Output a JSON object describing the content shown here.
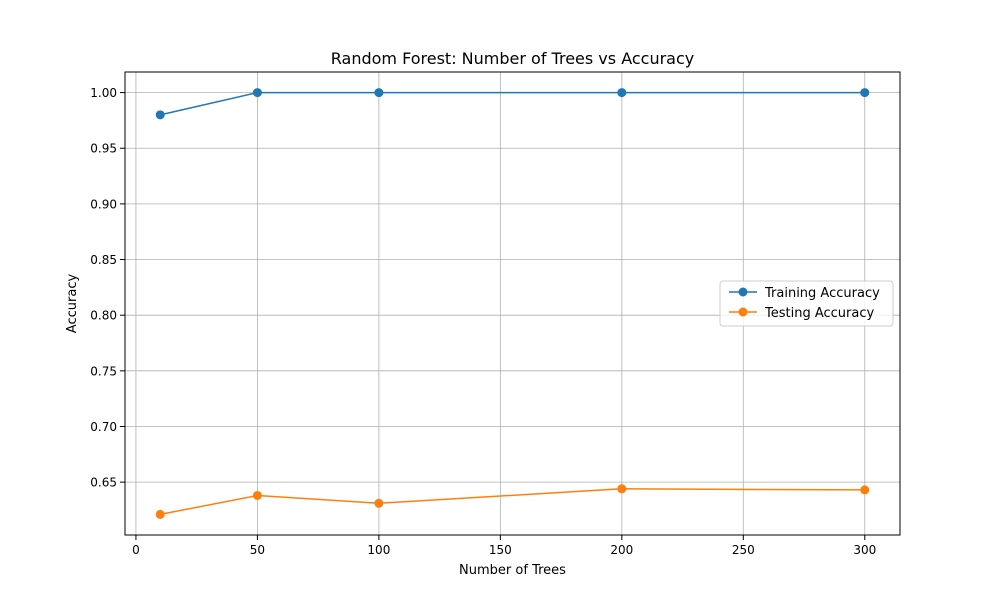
{
  "chart_data": {
    "type": "line",
    "title": "Random Forest: Number of Trees vs Accuracy",
    "xlabel": "Number of Trees",
    "ylabel": "Accuracy",
    "x": [
      10,
      50,
      100,
      200,
      300
    ],
    "xlim": [
      -4.5,
      314.5
    ],
    "ylim": [
      0.6025,
      1.0185
    ],
    "xticks": [
      0,
      50,
      100,
      150,
      200,
      250,
      300
    ],
    "xtick_labels": [
      "0",
      "50",
      "100",
      "150",
      "200",
      "250",
      "300"
    ],
    "yticks": [
      0.65,
      0.7,
      0.75,
      0.8,
      0.85,
      0.9,
      0.95,
      1.0
    ],
    "ytick_labels": [
      "0.65",
      "0.70",
      "0.75",
      "0.80",
      "0.85",
      "0.90",
      "0.95",
      "1.00"
    ],
    "grid": true,
    "legend_position": "center-right",
    "series": [
      {
        "name": "Training Accuracy",
        "color": "#1f77b4",
        "marker": "circle",
        "values": [
          0.98,
          1.0,
          1.0,
          1.0,
          1.0
        ]
      },
      {
        "name": "Testing Accuracy",
        "color": "#ff7f0e",
        "marker": "circle",
        "values": [
          0.621,
          0.638,
          0.631,
          0.644,
          0.643
        ]
      }
    ]
  }
}
